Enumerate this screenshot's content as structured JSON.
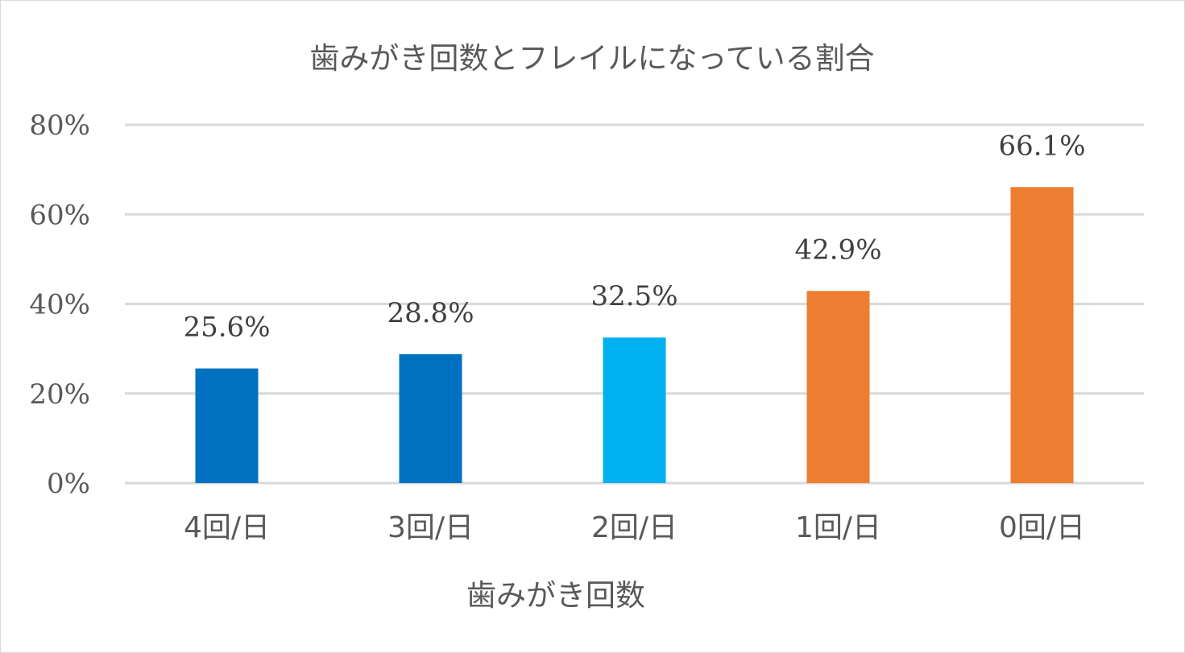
{
  "chart_data": {
    "type": "bar",
    "title": "歯みがき回数とフレイルになっている割合",
    "xlabel": "歯みがき回数",
    "ylabel": "",
    "categories": [
      "4回/日",
      "3回/日",
      "2回/日",
      "1回/日",
      "0回/日"
    ],
    "values": [
      25.6,
      28.8,
      32.5,
      42.9,
      66.1
    ],
    "data_labels": [
      "25.6%",
      "28.8%",
      "32.5%",
      "42.9%",
      "66.1%"
    ],
    "bar_colors": [
      "#0070c0",
      "#0070c0",
      "#00b0f0",
      "#ed7d31",
      "#ed7d31"
    ],
    "ylim": [
      0,
      80
    ],
    "yticks": [
      0,
      20,
      40,
      60,
      80
    ],
    "ytick_labels": [
      "0%",
      "20%",
      "40%",
      "60%",
      "80%"
    ],
    "grid": true,
    "legend": "none"
  }
}
